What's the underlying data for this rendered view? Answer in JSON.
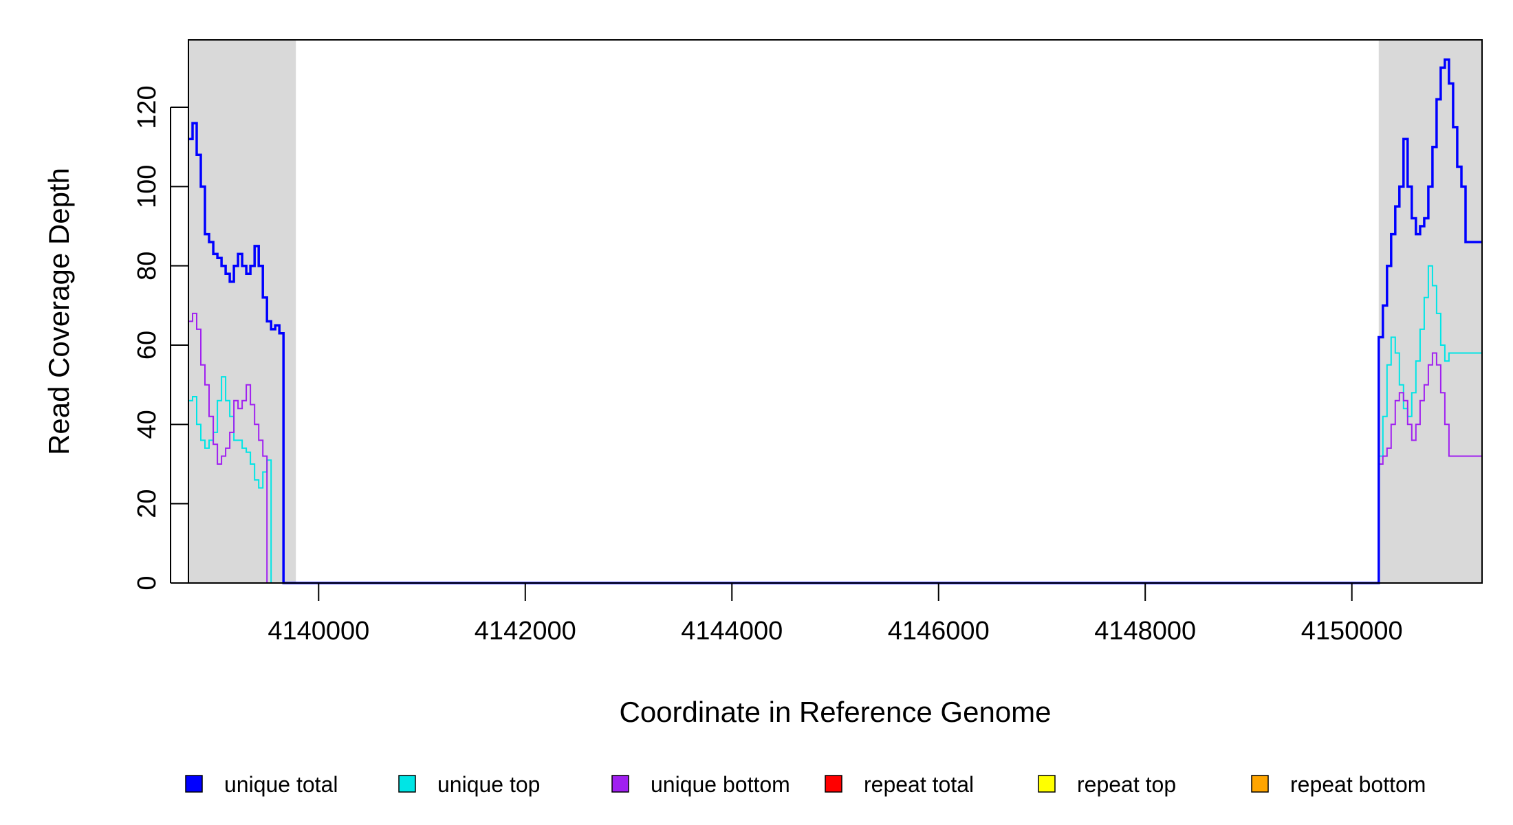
{
  "chart_data": {
    "type": "line",
    "title": "",
    "xlabel": "Coordinate in Reference Genome",
    "ylabel": "Read Coverage Depth",
    "xlim": [
      4138740,
      4151260
    ],
    "ylim": [
      0,
      137
    ],
    "x_ticks": [
      4140000,
      4142000,
      4144000,
      4146000,
      4148000,
      4150000
    ],
    "x_tick_labels": [
      "4140000",
      "4142000",
      "4144000",
      "4146000",
      "4148000",
      "4150000"
    ],
    "y_ticks": [
      0,
      20,
      40,
      60,
      80,
      100,
      120
    ],
    "y_tick_labels": [
      "0",
      "20",
      "40",
      "60",
      "80",
      "100",
      "120"
    ],
    "grid": false,
    "legend_position": "bottom",
    "shaded_regions": [
      {
        "x": [
          4138740,
          4139780
        ],
        "color": "#d9d9d9"
      },
      {
        "x": [
          4150260,
          4151260
        ],
        "color": "#d9d9d9"
      }
    ],
    "series": [
      {
        "name": "unique total",
        "color": "#0000ff",
        "x": [
          4138740,
          4138780,
          4138820,
          4138860,
          4138900,
          4138940,
          4138980,
          4139020,
          4139060,
          4139100,
          4139140,
          4139180,
          4139220,
          4139260,
          4139300,
          4139340,
          4139380,
          4139420,
          4139460,
          4139500,
          4139540,
          4139580,
          4139620,
          4139660,
          4139700,
          4139740,
          4139780,
          4139781,
          4150259,
          4150260,
          4150300,
          4150340,
          4150380,
          4150420,
          4150460,
          4150500,
          4150540,
          4150580,
          4150620,
          4150660,
          4150700,
          4150740,
          4150780,
          4150820,
          4150860,
          4150900,
          4150940,
          4150980,
          4151020,
          4151060,
          4151100,
          4151140,
          4151180,
          4151220,
          4151260
        ],
        "y": [
          112,
          116,
          108,
          100,
          88,
          86,
          83,
          82,
          80,
          78,
          76,
          80,
          83,
          80,
          78,
          80,
          85,
          80,
          72,
          66,
          64,
          65,
          63,
          0,
          0,
          0,
          0,
          0,
          0,
          62,
          70,
          80,
          88,
          95,
          100,
          112,
          100,
          92,
          88,
          90,
          92,
          100,
          110,
          122,
          130,
          132,
          126,
          115,
          105,
          100,
          86,
          86,
          86,
          86,
          86
        ]
      },
      {
        "name": "unique top",
        "color": "#00e5e5",
        "x": [
          4138740,
          4138780,
          4138820,
          4138860,
          4138900,
          4138940,
          4138980,
          4139020,
          4139060,
          4139100,
          4139140,
          4139180,
          4139220,
          4139260,
          4139300,
          4139340,
          4139380,
          4139420,
          4139460,
          4139500,
          4139540,
          4139580,
          4139620,
          4139660,
          4139700,
          4139740,
          4139780,
          4139781,
          4150259,
          4150260,
          4150300,
          4150340,
          4150380,
          4150420,
          4150460,
          4150500,
          4150540,
          4150580,
          4150620,
          4150660,
          4150700,
          4150740,
          4150780,
          4150820,
          4150860,
          4150900,
          4150940,
          4150980,
          4151020,
          4151060,
          4151100,
          4151140,
          4151180,
          4151220,
          4151260
        ],
        "y": [
          46,
          47,
          40,
          36,
          34,
          36,
          38,
          46,
          52,
          46,
          42,
          36,
          36,
          34,
          33,
          30,
          26,
          24,
          28,
          31,
          0,
          0,
          0,
          0,
          0,
          0,
          0,
          0,
          0,
          32,
          42,
          55,
          62,
          58,
          50,
          44,
          42,
          48,
          56,
          64,
          72,
          80,
          75,
          68,
          60,
          56,
          58,
          58,
          58,
          58,
          58,
          58,
          58,
          58,
          58
        ]
      },
      {
        "name": "unique bottom",
        "color": "#a020f0",
        "x": [
          4138740,
          4138780,
          4138820,
          4138860,
          4138900,
          4138940,
          4138980,
          4139020,
          4139060,
          4139100,
          4139140,
          4139180,
          4139220,
          4139260,
          4139300,
          4139340,
          4139380,
          4139420,
          4139460,
          4139500,
          4139540,
          4139580,
          4139620,
          4139660,
          4139700,
          4139740,
          4139780,
          4139781,
          4150259,
          4150260,
          4150300,
          4150340,
          4150380,
          4150420,
          4150460,
          4150500,
          4150540,
          4150580,
          4150620,
          4150660,
          4150700,
          4150740,
          4150780,
          4150820,
          4150860,
          4150900,
          4150940,
          4150980,
          4151020,
          4151060,
          4151100,
          4151140,
          4151180,
          4151220,
          4151260
        ],
        "y": [
          66,
          68,
          64,
          55,
          50,
          42,
          35,
          30,
          32,
          34,
          38,
          46,
          44,
          46,
          50,
          45,
          40,
          36,
          32,
          0,
          0,
          0,
          0,
          0,
          0,
          0,
          0,
          0,
          0,
          30,
          32,
          34,
          40,
          46,
          48,
          46,
          40,
          36,
          40,
          46,
          50,
          55,
          58,
          55,
          48,
          40,
          32,
          32,
          32,
          32,
          32,
          32,
          32,
          32,
          32
        ]
      },
      {
        "name": "repeat total",
        "color": "#ff0000",
        "x": [
          4138740,
          4151260
        ],
        "y": [
          0,
          0
        ]
      },
      {
        "name": "repeat top",
        "color": "#ffff00",
        "x": [
          4138740,
          4151260
        ],
        "y": [
          0,
          0
        ]
      },
      {
        "name": "repeat bottom",
        "color": "#ffa500",
        "x": [
          4138740,
          4151260
        ],
        "y": [
          0,
          0
        ]
      }
    ]
  }
}
